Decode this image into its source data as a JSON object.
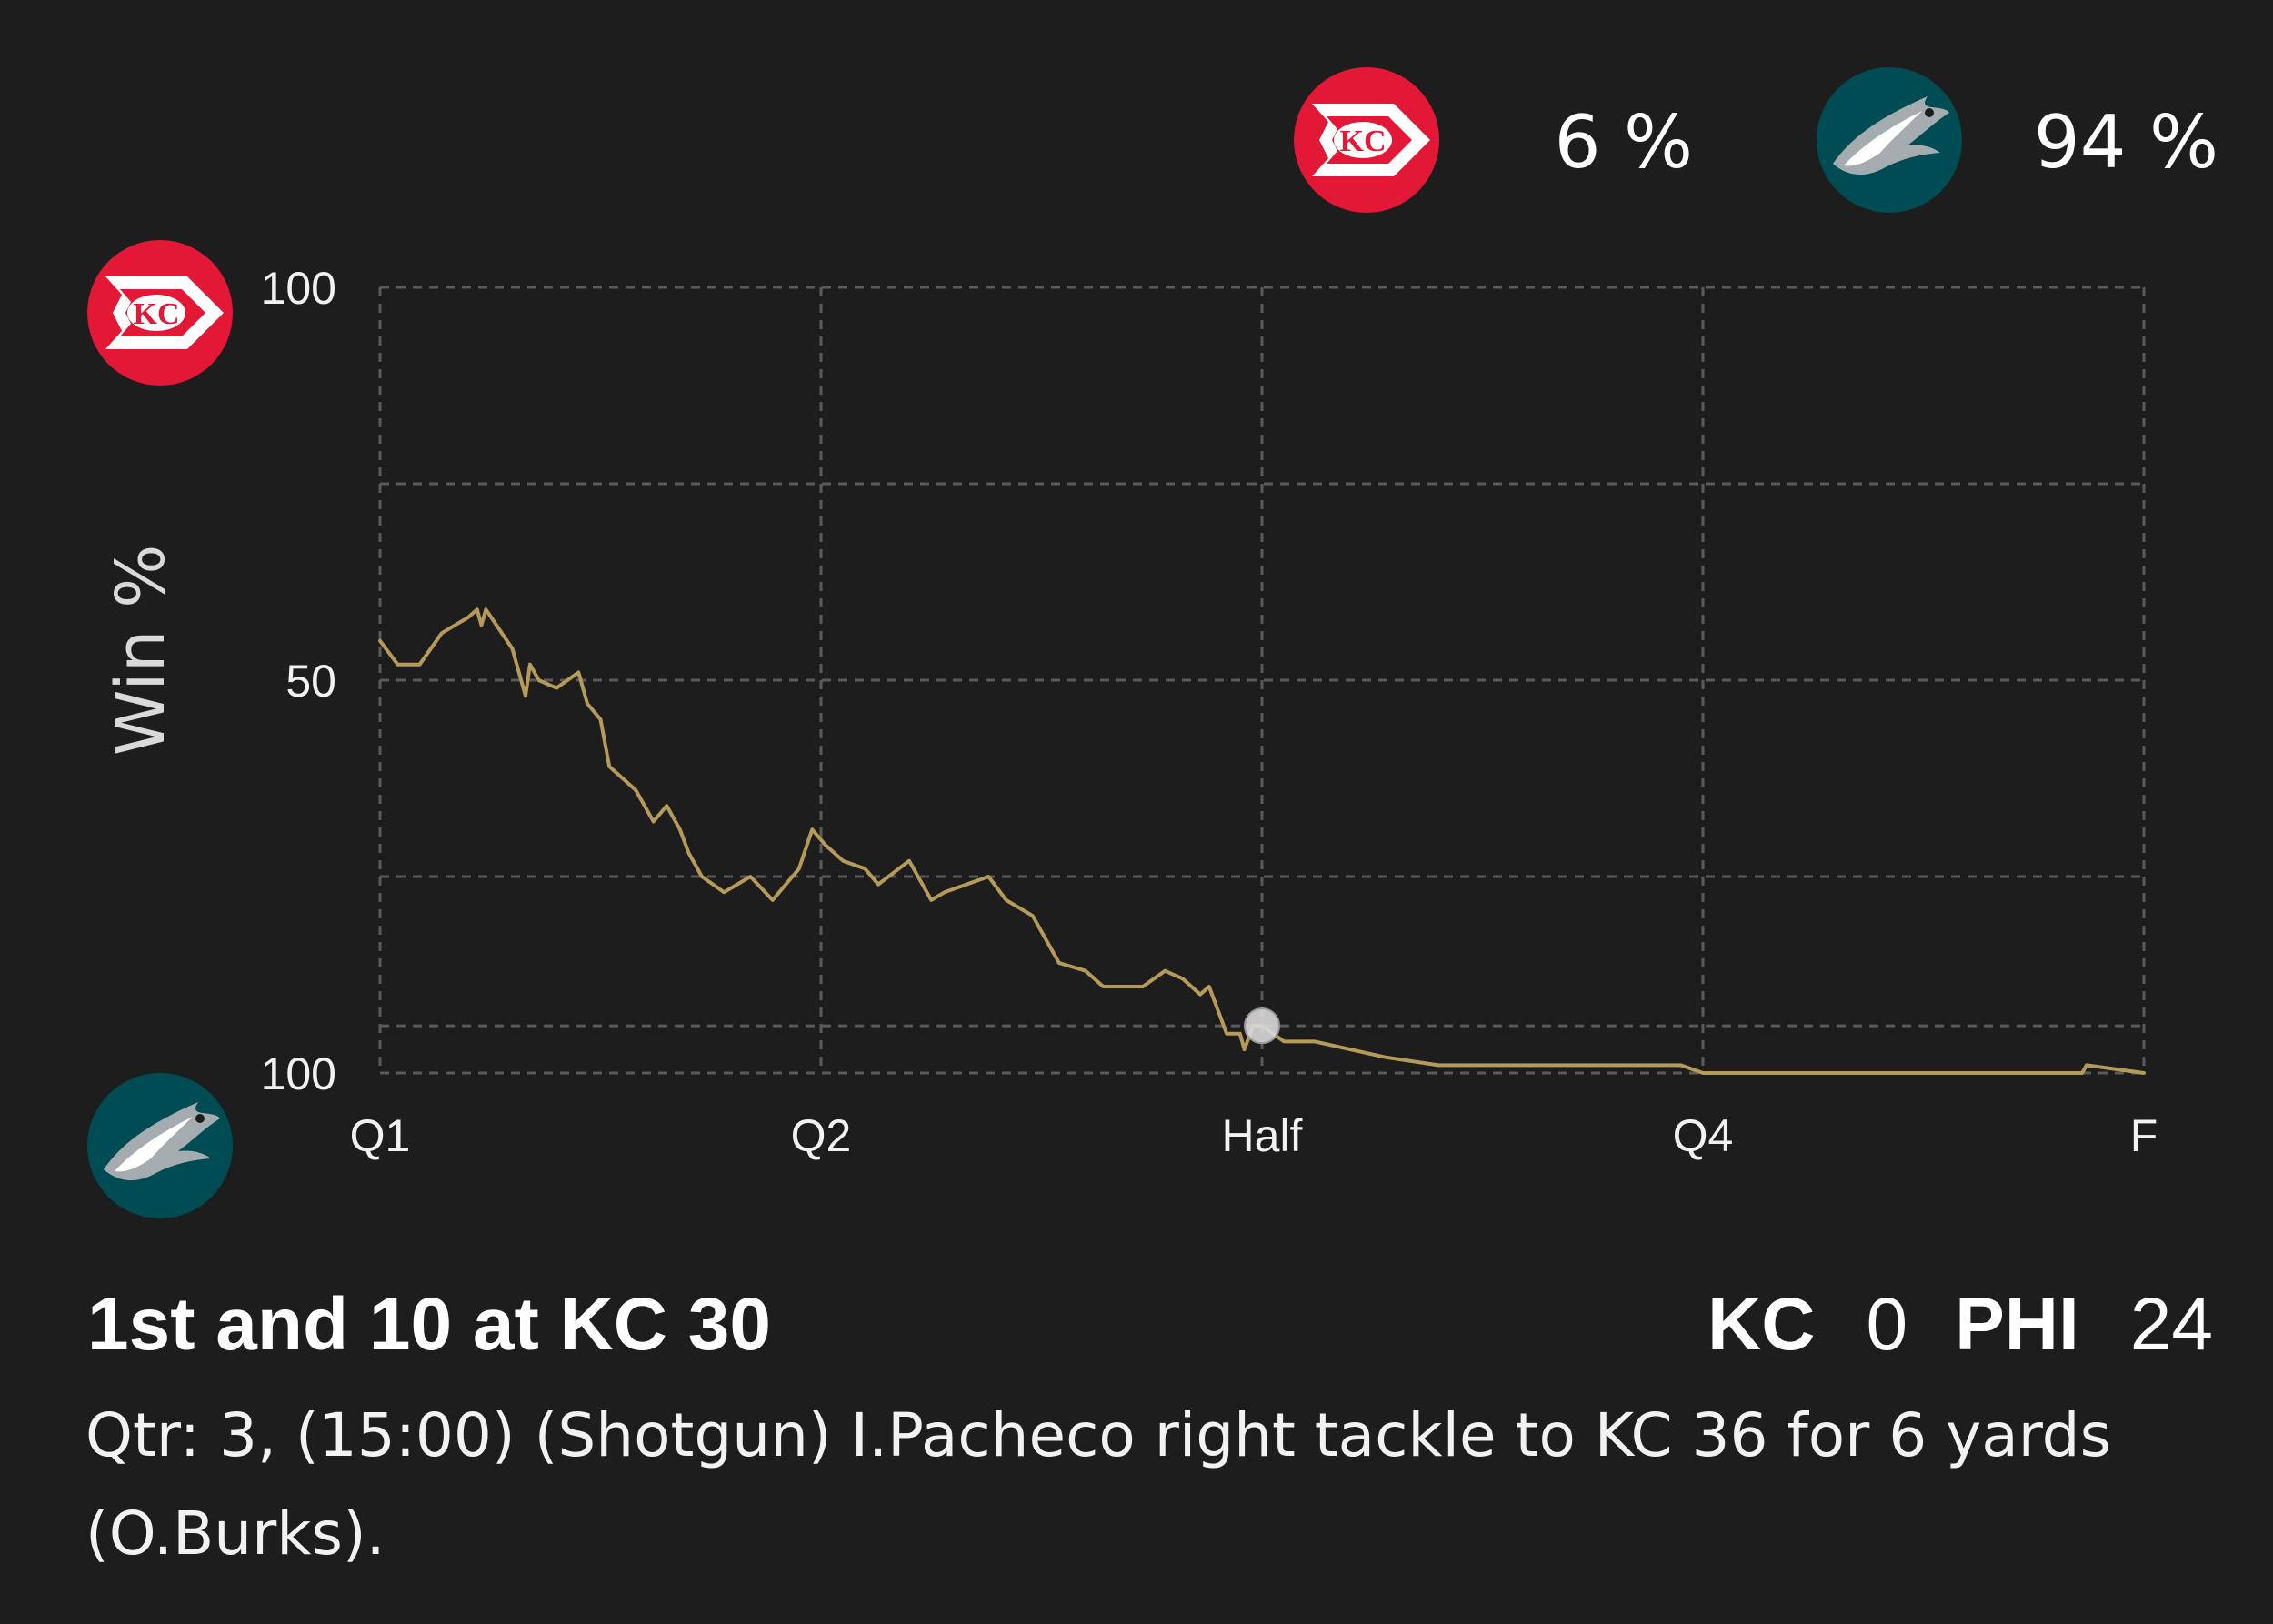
{
  "legend": {
    "home_team": "KC",
    "home_pct": "6 %",
    "away_team": "PHI",
    "away_pct": "94 %"
  },
  "colors": {
    "background": "#1d1d1d",
    "grid": "#5a5a5a",
    "line": "#b59a5a",
    "kc_red": "#e31837",
    "phi_teal": "#004c54",
    "marker": "#d9d9d9"
  },
  "chart_data": {
    "type": "line",
    "ylabel": "Win %",
    "y_tick_labels": [
      {
        "value": 100,
        "label": "100"
      },
      {
        "value": 50,
        "label": "50"
      },
      {
        "value": 0,
        "label": "100"
      }
    ],
    "y_grid": [
      100,
      75,
      50,
      25,
      6,
      0
    ],
    "ylim": [
      0,
      100
    ],
    "x_tick_labels": [
      {
        "value": 0,
        "label": "Q1"
      },
      {
        "value": 1,
        "label": "Q2"
      },
      {
        "value": 2,
        "label": "Half"
      },
      {
        "value": 3,
        "label": "Q4"
      },
      {
        "value": 4,
        "label": "F"
      }
    ],
    "xlim": [
      0,
      4
    ],
    "grid": true,
    "y_axis_icons": {
      "top": "kc-logo",
      "bottom": "phi-logo"
    },
    "series": [
      {
        "x": [
          0,
          0.04,
          0.09,
          0.14,
          0.2,
          0.22,
          0.23,
          0.24,
          0.3,
          0.33,
          0.34,
          0.36,
          0.4,
          0.45,
          0.47,
          0.5,
          0.52,
          0.56,
          0.58,
          0.62,
          0.65,
          0.68,
          0.7,
          0.73,
          0.78,
          0.84,
          0.89,
          0.95,
          0.98,
          1.01,
          1.05,
          1.1,
          1.13,
          1.2,
          1.25,
          1.28,
          1.33,
          1.38,
          1.42,
          1.48,
          1.5,
          1.54,
          1.6,
          1.64,
          1.7,
          1.73,
          1.78,
          1.82,
          1.86,
          1.88,
          1.9,
          1.92,
          1.95,
          1.96,
          1.98,
          2.0,
          2.05,
          2.12,
          2.2,
          2.28,
          2.4,
          2.6,
          2.8,
          2.95,
          3.0,
          3.2,
          3.5,
          3.8,
          3.86,
          3.87,
          4.0
        ],
        "y": [
          55,
          52,
          52,
          56,
          58,
          59,
          57,
          59,
          54,
          48,
          52,
          50,
          49,
          51,
          47,
          45,
          39,
          37,
          36,
          32,
          34,
          31,
          28,
          25,
          23,
          25,
          22,
          26,
          31,
          29,
          27,
          26,
          24,
          27,
          22,
          23,
          24,
          25,
          22,
          20,
          18,
          14,
          13,
          11,
          11,
          11,
          13,
          12,
          10,
          11,
          8,
          5,
          5,
          3,
          6,
          6,
          4,
          4,
          3,
          2,
          1,
          1,
          1,
          1,
          0,
          0,
          0,
          0,
          0,
          1,
          0
        ]
      }
    ],
    "current_marker": {
      "x": 2.0,
      "y": 6
    }
  },
  "situation": {
    "down_distance": "1st and 10 at KC 30",
    "home_abbr": "KC",
    "home_score": "0",
    "away_abbr": "PHI",
    "away_score": "24"
  },
  "play": {
    "description": "Qtr: 3, (15:00) (Shotgun) I.Pacheco right tackle to KC 36 for 6 yards (O.Burks)."
  }
}
